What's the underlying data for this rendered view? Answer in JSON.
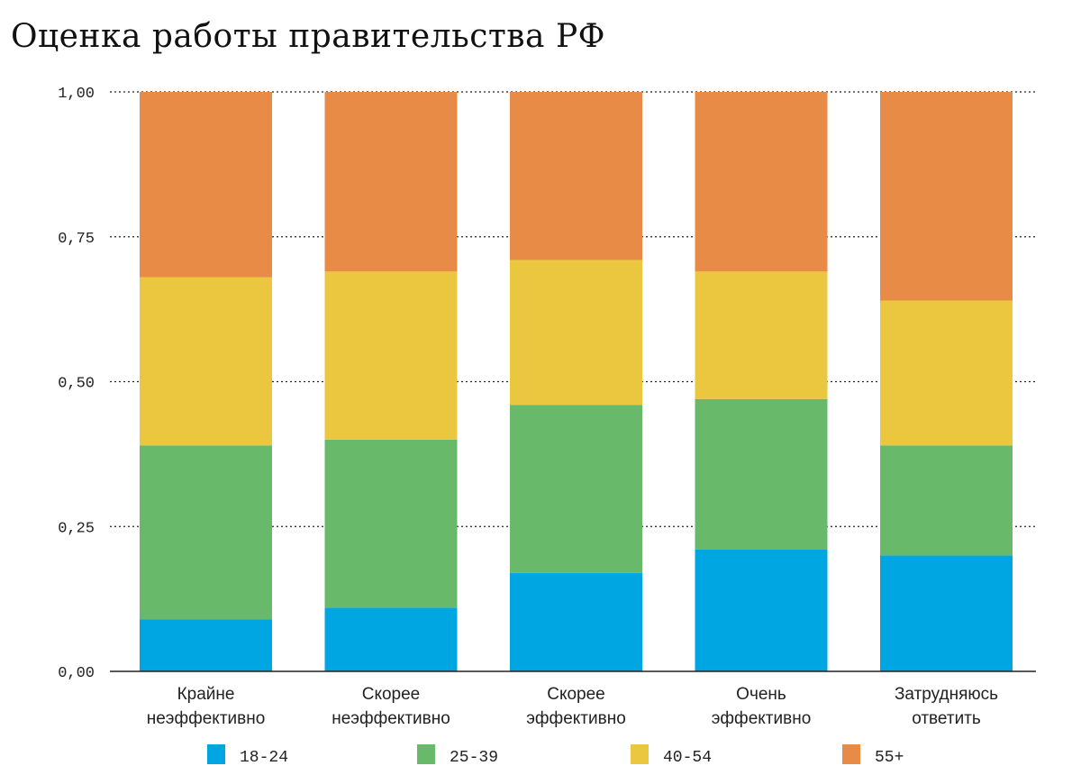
{
  "chart_data": {
    "type": "bar",
    "stacked": true,
    "title": "Оценка работы правительства РФ",
    "xlabel": "",
    "ylabel": "",
    "ylim": [
      0,
      1
    ],
    "yticks": [
      "0,00",
      "0,25",
      "0,50",
      "0,75",
      "1,00"
    ],
    "grid": true,
    "legend_position": "bottom",
    "categories": [
      [
        "Крайне",
        "неэффективно"
      ],
      [
        "Скорее",
        "неэффективно"
      ],
      [
        "Скорее",
        "эффективно"
      ],
      [
        "Очень",
        "эффективно"
      ],
      [
        "Затрудняюсь",
        "ответить"
      ]
    ],
    "series": [
      {
        "name": "18-24",
        "color": "#00a6e2",
        "values": [
          0.09,
          0.11,
          0.17,
          0.21,
          0.2
        ]
      },
      {
        "name": "25-39",
        "color": "#68b96a",
        "values": [
          0.3,
          0.29,
          0.29,
          0.26,
          0.19
        ]
      },
      {
        "name": "40-54",
        "color": "#ebc63f",
        "values": [
          0.29,
          0.29,
          0.25,
          0.22,
          0.25
        ]
      },
      {
        "name": "55+",
        "color": "#e88b46",
        "values": [
          0.32,
          0.31,
          0.29,
          0.31,
          0.36
        ]
      }
    ]
  }
}
